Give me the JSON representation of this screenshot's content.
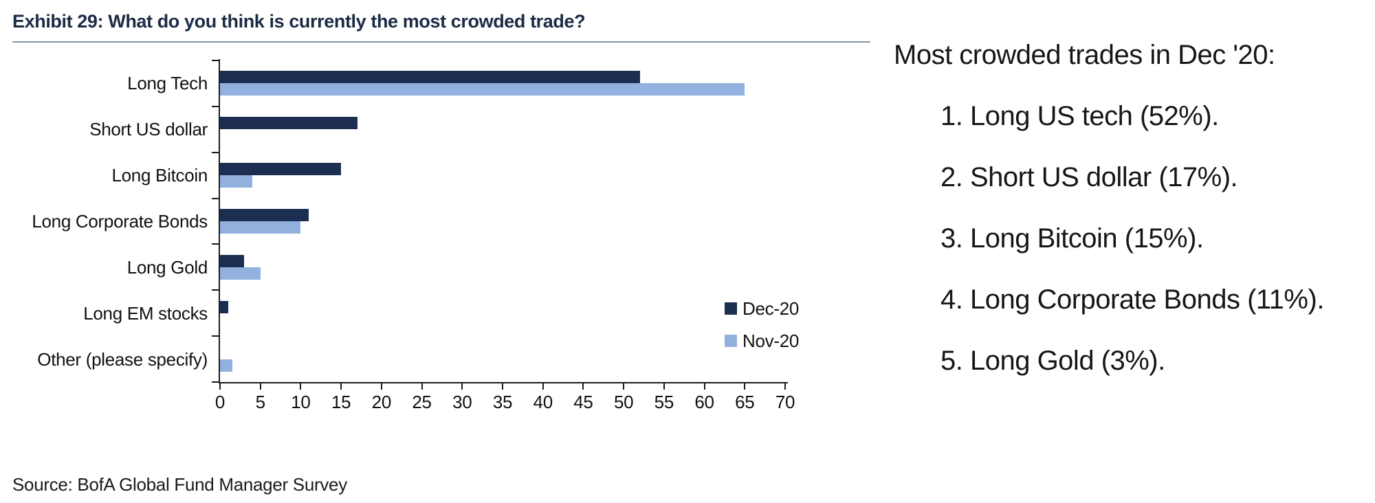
{
  "exhibit": {
    "title": "Exhibit 29: What do you think is currently the most crowded trade?",
    "source": "Source: BofA Global Fund Manager Survey"
  },
  "chart_data": {
    "type": "bar",
    "orientation": "horizontal",
    "title": "Exhibit 29: What do you think is currently the most crowded trade?",
    "categories": [
      "Long Tech",
      "Short US dollar",
      "Long Bitcoin",
      "Long Corporate Bonds",
      "Long Gold",
      "Long EM stocks",
      "Other (please specify)"
    ],
    "series": [
      {
        "name": "Dec-20",
        "color": "#1c2e52",
        "values": [
          52,
          17,
          15,
          11,
          3,
          1,
          0
        ]
      },
      {
        "name": "Nov-20",
        "color": "#92b1de",
        "values": [
          65,
          0,
          4,
          10,
          5,
          0,
          1.5
        ]
      }
    ],
    "xlabel": "",
    "ylabel": "",
    "xlim": [
      0,
      70
    ],
    "xticks": [
      0,
      5,
      10,
      15,
      20,
      25,
      30,
      35,
      40,
      45,
      50,
      55,
      60,
      65,
      70
    ],
    "grid": false,
    "legend_position": "inside-right"
  },
  "annotation": {
    "heading": "Most crowded trades in Dec '20:",
    "items": [
      "1. Long US tech (52%).",
      "2. Short US dollar (17%).",
      "3. Long Bitcoin (15%).",
      "4. Long Corporate Bonds (11%).",
      "5. Long Gold (3%)."
    ]
  },
  "colors": {
    "dec20_bar": "#1c2e52",
    "nov20_bar": "#92b1de",
    "title_navy": "#1c2b45",
    "header_rule": "#7f9aa8",
    "axis": "#1a1a1a"
  }
}
